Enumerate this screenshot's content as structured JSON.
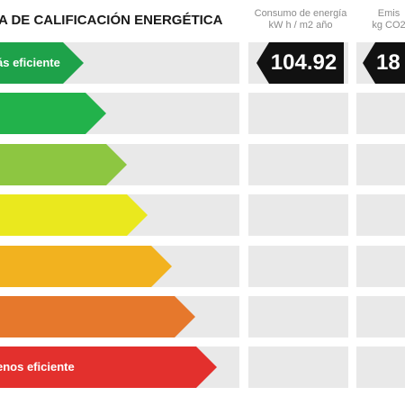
{
  "title": "A DE CALIFICACIÓN ENERGÉTICA",
  "columns": {
    "consumo": {
      "line1": "Consumo de energía",
      "line2": "kW h / m2 año",
      "value": "104.92"
    },
    "emisiones": {
      "line1": "Emis",
      "line2": "kg CO2",
      "value": "18"
    }
  },
  "bars": [
    {
      "label": "ás eficiente",
      "color": "#1ea24a"
    },
    {
      "label": "",
      "color": "#22b24b"
    },
    {
      "label": "",
      "color": "#8dc641"
    },
    {
      "label": "",
      "color": "#eae81e"
    },
    {
      "label": "",
      "color": "#f2b21f"
    },
    {
      "label": "",
      "color": "#e6782c"
    },
    {
      "label": "enos eficiente",
      "color": "#e3302d"
    }
  ],
  "selected_row": 0
}
